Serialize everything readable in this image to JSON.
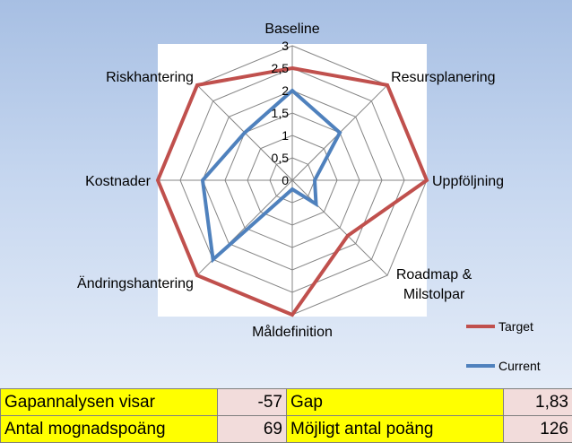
{
  "chart_data": {
    "type": "radar",
    "categories": [
      "Baseline",
      "Resursplanering",
      "Uppföljning",
      "Roadmap &\nMilstolpar",
      "Måldefinition",
      "Ändringshantering",
      "Kostnader",
      "Riskhantering"
    ],
    "rlim": [
      0,
      3
    ],
    "ticks": [
      "0",
      "0,5",
      "1",
      "1,5",
      "2",
      "2,5",
      "3"
    ],
    "grid": true,
    "series": [
      {
        "name": "Target",
        "color": "#c0504d",
        "values": [
          2.5,
          3,
          3,
          1.75,
          3,
          3,
          3,
          3
        ]
      },
      {
        "name": "Current",
        "color": "#4f81bd",
        "values": [
          2,
          1.5,
          0.5,
          0.75,
          0.2,
          2.5,
          2,
          1.5
        ]
      }
    ],
    "legend": "bottom-right"
  },
  "summary": {
    "rows": [
      {
        "label1": "Gapannalysen visar",
        "value1": "-57",
        "label2": "Gap",
        "value2": "1,83"
      },
      {
        "label1": "Antal mognadspoäng",
        "value1": "69",
        "label2": "Möjligt antal poäng",
        "value2": "126"
      }
    ]
  }
}
